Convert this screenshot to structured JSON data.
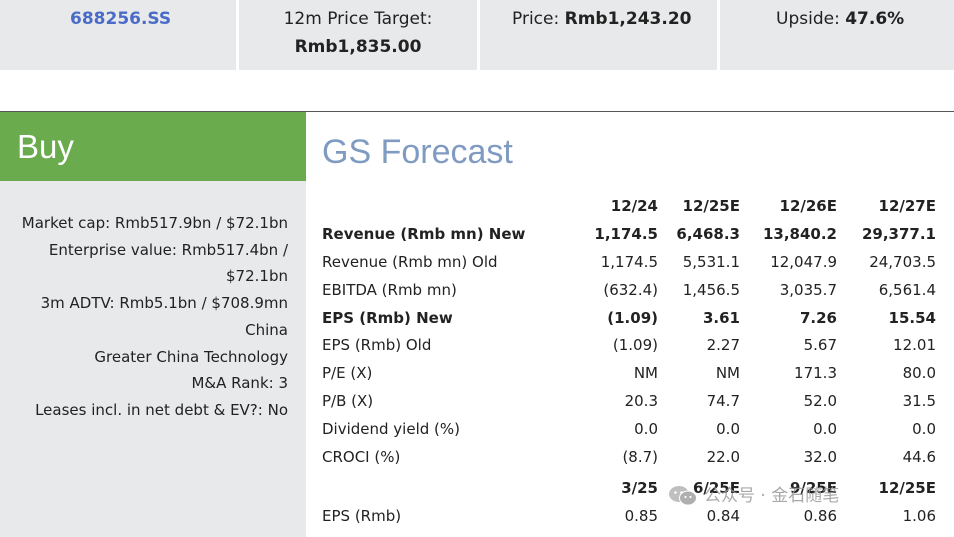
{
  "header": {
    "ticker": "688256.SS",
    "price_target_label": "12m Price Target:",
    "price_target_value": "Rmb1,835.00",
    "price_label": "Price:",
    "price_value": "Rmb1,243.20",
    "upside_label": "Upside:",
    "upside_value": "47.6%"
  },
  "rating": {
    "label": "Buy",
    "color": "#6aab4e"
  },
  "info_lines": [
    "Market cap: Rmb517.9bn / $72.1bn",
    "Enterprise value: Rmb517.4bn /",
    "$72.1bn",
    "3m ADTV: Rmb5.1bn / $708.9mn",
    "China",
    "Greater China Technology",
    "M&A Rank: 3",
    "Leases incl. in net debt & EV?: No"
  ],
  "forecast": {
    "title": "GS Forecast",
    "title_color": "#7f9bc2",
    "columns": [
      "12/24",
      "12/25E",
      "12/26E",
      "12/27E"
    ],
    "rows": [
      {
        "label": "Revenue (Rmb mn) New",
        "values": [
          "1,174.5",
          "6,468.3",
          "13,840.2",
          "29,377.1"
        ]
      },
      {
        "label": "Revenue (Rmb mn) Old",
        "values": [
          "1,174.5",
          "5,531.1",
          "12,047.9",
          "24,703.5"
        ]
      },
      {
        "label": "EBITDA (Rmb mn)",
        "values": [
          "(632.4)",
          "1,456.5",
          "3,035.7",
          "6,561.4"
        ]
      },
      {
        "label": "EPS (Rmb) New",
        "values": [
          "(1.09)",
          "3.61",
          "7.26",
          "15.54"
        ]
      },
      {
        "label": "EPS (Rmb) Old",
        "values": [
          "(1.09)",
          "2.27",
          "5.67",
          "12.01"
        ]
      },
      {
        "label": "P/E (X)",
        "values": [
          "NM",
          "NM",
          "171.3",
          "80.0"
        ]
      },
      {
        "label": "P/B (X)",
        "values": [
          "20.3",
          "74.7",
          "52.0",
          "31.5"
        ]
      },
      {
        "label": "Dividend yield (%)",
        "values": [
          "0.0",
          "0.0",
          "0.0",
          "0.0"
        ]
      },
      {
        "label": "CROCI (%)",
        "values": [
          "(8.7)",
          "22.0",
          "32.0",
          "44.6"
        ]
      }
    ],
    "quarter_columns": [
      "3/25",
      "6/25E",
      "9/25E",
      "12/25E"
    ],
    "quarter_row": {
      "label": "EPS (Rmb)",
      "values": [
        "0.85",
        "0.84",
        "0.86",
        "1.06"
      ]
    }
  },
  "watermark": {
    "text": "公众号 · 金石随笔",
    "icon": "wechat-icon"
  }
}
